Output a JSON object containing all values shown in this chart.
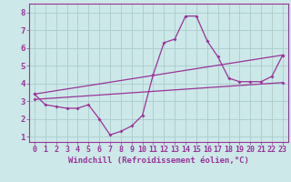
{
  "xlabel": "Windchill (Refroidissement éolien,°C)",
  "bg_color": "#cce8e8",
  "grid_color": "#aacccc",
  "line_color": "#993399",
  "axis_color": "#993399",
  "xlim": [
    -0.5,
    23.5
  ],
  "ylim": [
    0.7,
    8.5
  ],
  "xticks": [
    0,
    1,
    2,
    3,
    4,
    5,
    6,
    7,
    8,
    9,
    10,
    11,
    12,
    13,
    14,
    15,
    16,
    17,
    18,
    19,
    20,
    21,
    22,
    23
  ],
  "yticks": [
    1,
    2,
    3,
    4,
    5,
    6,
    7,
    8
  ],
  "main_x": [
    0,
    1,
    2,
    3,
    4,
    5,
    6,
    7,
    8,
    9,
    10,
    11,
    12,
    13,
    14,
    15,
    16,
    17,
    18,
    19,
    20,
    21,
    22,
    23
  ],
  "main_y": [
    3.4,
    2.8,
    2.7,
    2.6,
    2.6,
    2.8,
    2.0,
    1.1,
    1.3,
    1.6,
    2.2,
    4.5,
    6.3,
    6.5,
    7.8,
    7.8,
    6.4,
    5.5,
    4.3,
    4.1,
    4.1,
    4.1,
    4.4,
    5.6
  ],
  "line2_x": [
    0,
    23
  ],
  "line2_y": [
    3.4,
    5.6
  ],
  "line3_x": [
    0,
    23
  ],
  "line3_y": [
    3.1,
    4.05
  ],
  "tick_fontsize": 6,
  "xlabel_fontsize": 6.5
}
